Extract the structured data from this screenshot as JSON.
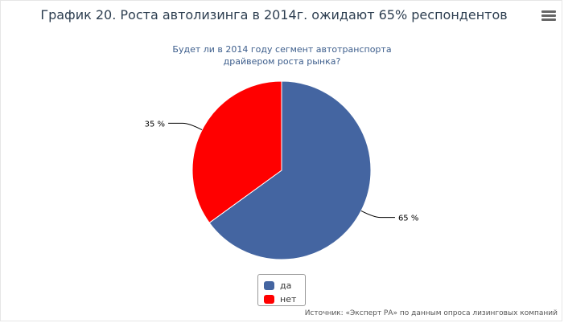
{
  "title": "График 20. Роста автолизинга в 2014г. ожидают 65% респондентов",
  "subtitle_lines": [
    "Будет ли в 2014 году сегмент автотранспорта",
    "драйвером роста рынка?"
  ],
  "menu_icon": "hamburger-menu-icon",
  "source": "Источник: «Эксперт РА» по данным опроса лизинговых компаний",
  "chart_data": {
    "type": "pie",
    "title": "График 20. Роста автолизинга в 2014г. ожидают 65% респондентов",
    "subtitle": "Будет ли в 2014 году сегмент автотранспорта драйвером роста рынка?",
    "slices": [
      {
        "name": "да",
        "value": 65,
        "label": "65 %",
        "color": "#4465a1"
      },
      {
        "name": "нет",
        "value": 35,
        "label": "35 %",
        "color": "#ff0000"
      }
    ],
    "legend_placement": "bottom"
  }
}
